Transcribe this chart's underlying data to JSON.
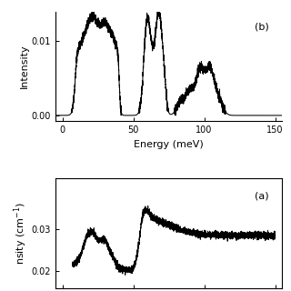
{
  "panel_b": {
    "label": "(b)",
    "xlabel": "Energy (meV)",
    "ylabel": "Intensity",
    "xlim": [
      -5,
      155
    ],
    "ylim": [
      -0.0008,
      0.014
    ],
    "yticks": [
      0.0,
      0.01
    ],
    "ytick_labels": [
      "0.00",
      "0.01"
    ],
    "xticks": [
      0,
      50,
      100,
      150
    ]
  },
  "panel_a": {
    "label": "(a)",
    "ylabel": "nsity (cm$^{-1}$)",
    "xlim": [
      -5,
      155
    ],
    "ylim": [
      0.016,
      0.042
    ],
    "yticks": [
      0.02,
      0.03
    ],
    "ytick_labels": [
      "0.02",
      "0.03"
    ]
  },
  "bg_color": "#ffffff",
  "line_color": "#000000"
}
